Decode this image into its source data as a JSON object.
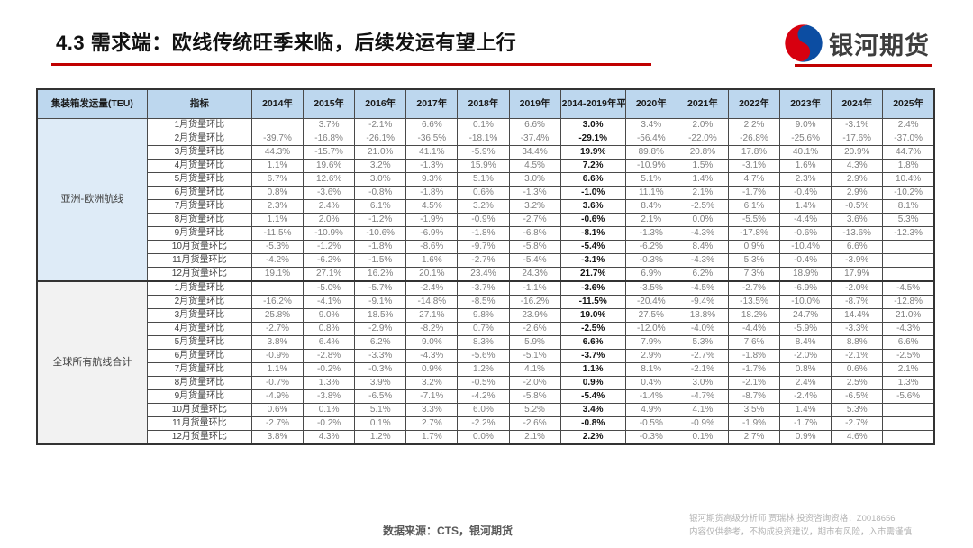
{
  "slide": {
    "title": "4.3 需求端：欧线传统旺季来临，后续发运有望上行",
    "logo_text": "银河期货"
  },
  "colors": {
    "accent_red": "#C00000",
    "table_header_bg": "#BDD7EE",
    "section1_tint": "#DEEBF7",
    "section2_tint": "#EFEFEF",
    "logo_blue": "#0C4DA2",
    "logo_red": "#D7000F"
  },
  "table": {
    "col_headers": [
      "集装箱发运量(TEU)",
      "指标",
      "2014年",
      "2015年",
      "2016年",
      "2017年",
      "2018年",
      "2019年",
      "2014-2019年平均",
      "2020年",
      "2021年",
      "2022年",
      "2023年",
      "2024年",
      "2025年"
    ],
    "sections": [
      {
        "group_label": "亚洲-欧洲航线",
        "rows": [
          {
            "label": "1月货量环比",
            "values": [
              "",
              "3.7%",
              "-2.1%",
              "6.6%",
              "0.1%",
              "6.6%",
              "3.0%",
              "3.4%",
              "2.0%",
              "2.2%",
              "9.0%",
              "-3.1%",
              "2.4%"
            ]
          },
          {
            "label": "2月货量环比",
            "values": [
              "-39.7%",
              "-16.8%",
              "-26.1%",
              "-36.5%",
              "-18.1%",
              "-37.4%",
              "-29.1%",
              "-56.4%",
              "-22.0%",
              "-26.8%",
              "-25.6%",
              "-17.6%",
              "-37.0%"
            ]
          },
          {
            "label": "3月货量环比",
            "values": [
              "44.3%",
              "-15.7%",
              "21.0%",
              "41.1%",
              "-5.9%",
              "34.4%",
              "19.9%",
              "89.8%",
              "20.8%",
              "17.8%",
              "40.1%",
              "20.9%",
              "44.7%"
            ]
          },
          {
            "label": "4月货量环比",
            "values": [
              "1.1%",
              "19.6%",
              "3.2%",
              "-1.3%",
              "15.9%",
              "4.5%",
              "7.2%",
              "-10.9%",
              "1.5%",
              "-3.1%",
              "1.6%",
              "4.3%",
              "1.8%"
            ]
          },
          {
            "label": "5月货量环比",
            "values": [
              "6.7%",
              "12.6%",
              "3.0%",
              "9.3%",
              "5.1%",
              "3.0%",
              "6.6%",
              "5.1%",
              "1.4%",
              "4.7%",
              "2.3%",
              "2.9%",
              "10.4%"
            ]
          },
          {
            "label": "6月货量环比",
            "values": [
              "0.8%",
              "-3.6%",
              "-0.8%",
              "-1.8%",
              "0.6%",
              "-1.3%",
              "-1.0%",
              "11.1%",
              "2.1%",
              "-1.7%",
              "-0.4%",
              "2.9%",
              "-10.2%"
            ]
          },
          {
            "label": "7月货量环比",
            "values": [
              "2.3%",
              "2.4%",
              "6.1%",
              "4.5%",
              "3.2%",
              "3.2%",
              "3.6%",
              "8.4%",
              "-2.5%",
              "6.1%",
              "1.4%",
              "-0.5%",
              "8.1%"
            ]
          },
          {
            "label": "8月货量环比",
            "values": [
              "1.1%",
              "2.0%",
              "-1.2%",
              "-1.9%",
              "-0.9%",
              "-2.7%",
              "-0.6%",
              "2.1%",
              "0.0%",
              "-5.5%",
              "-4.4%",
              "3.6%",
              "5.3%"
            ]
          },
          {
            "label": "9月货量环比",
            "values": [
              "-11.5%",
              "-10.9%",
              "-10.6%",
              "-6.9%",
              "-1.8%",
              "-6.8%",
              "-8.1%",
              "-1.3%",
              "-4.3%",
              "-17.8%",
              "-0.6%",
              "-13.6%",
              "-12.3%"
            ]
          },
          {
            "label": "10月货量环比",
            "values": [
              "-5.3%",
              "-1.2%",
              "-1.8%",
              "-8.6%",
              "-9.7%",
              "-5.8%",
              "-5.4%",
              "-6.2%",
              "8.4%",
              "0.9%",
              "-10.4%",
              "6.6%",
              ""
            ]
          },
          {
            "label": "11月货量环比",
            "values": [
              "-4.2%",
              "-6.2%",
              "-1.5%",
              "1.6%",
              "-2.7%",
              "-5.4%",
              "-3.1%",
              "-0.3%",
              "-4.3%",
              "5.3%",
              "-0.4%",
              "-3.9%",
              ""
            ]
          },
          {
            "label": "12月货量环比",
            "values": [
              "19.1%",
              "27.1%",
              "16.2%",
              "20.1%",
              "23.4%",
              "24.3%",
              "21.7%",
              "6.9%",
              "6.2%",
              "7.3%",
              "18.9%",
              "17.9%",
              ""
            ]
          }
        ]
      },
      {
        "group_label": "全球所有航线合计",
        "rows": [
          {
            "label": "1月货量环比",
            "values": [
              "",
              "-5.0%",
              "-5.7%",
              "-2.4%",
              "-3.7%",
              "-1.1%",
              "-3.6%",
              "-3.5%",
              "-4.5%",
              "-2.7%",
              "-6.9%",
              "-2.0%",
              "-4.5%"
            ]
          },
          {
            "label": "2月货量环比",
            "values": [
              "-16.2%",
              "-4.1%",
              "-9.1%",
              "-14.8%",
              "-8.5%",
              "-16.2%",
              "-11.5%",
              "-20.4%",
              "-9.4%",
              "-13.5%",
              "-10.0%",
              "-8.7%",
              "-12.8%"
            ]
          },
          {
            "label": "3月货量环比",
            "values": [
              "25.8%",
              "9.0%",
              "18.5%",
              "27.1%",
              "9.8%",
              "23.9%",
              "19.0%",
              "27.5%",
              "18.8%",
              "18.2%",
              "24.7%",
              "14.4%",
              "21.0%"
            ]
          },
          {
            "label": "4月货量环比",
            "values": [
              "-2.7%",
              "0.8%",
              "-2.9%",
              "-8.2%",
              "0.7%",
              "-2.6%",
              "-2.5%",
              "-12.0%",
              "-4.0%",
              "-4.4%",
              "-5.9%",
              "-3.3%",
              "-4.3%"
            ]
          },
          {
            "label": "5月货量环比",
            "values": [
              "3.8%",
              "6.4%",
              "6.2%",
              "9.0%",
              "8.3%",
              "5.9%",
              "6.6%",
              "7.9%",
              "5.3%",
              "7.6%",
              "8.4%",
              "8.8%",
              "6.6%"
            ]
          },
          {
            "label": "6月货量环比",
            "values": [
              "-0.9%",
              "-2.8%",
              "-3.3%",
              "-4.3%",
              "-5.6%",
              "-5.1%",
              "-3.7%",
              "2.9%",
              "-2.7%",
              "-1.8%",
              "-2.0%",
              "-2.1%",
              "-2.5%"
            ]
          },
          {
            "label": "7月货量环比",
            "values": [
              "1.1%",
              "-0.2%",
              "-0.3%",
              "0.9%",
              "1.2%",
              "4.1%",
              "1.1%",
              "8.1%",
              "-2.1%",
              "-1.7%",
              "0.8%",
              "0.6%",
              "2.1%"
            ]
          },
          {
            "label": "8月货量环比",
            "values": [
              "-0.7%",
              "1.3%",
              "3.9%",
              "3.2%",
              "-0.5%",
              "-2.0%",
              "0.9%",
              "0.4%",
              "3.0%",
              "-2.1%",
              "2.4%",
              "2.5%",
              "1.3%"
            ]
          },
          {
            "label": "9月货量环比",
            "values": [
              "-4.9%",
              "-3.8%",
              "-6.5%",
              "-7.1%",
              "-4.2%",
              "-5.8%",
              "-5.4%",
              "-1.4%",
              "-4.7%",
              "-8.7%",
              "-2.4%",
              "-6.5%",
              "-5.6%"
            ]
          },
          {
            "label": "10月货量环比",
            "values": [
              "0.6%",
              "0.1%",
              "5.1%",
              "3.3%",
              "6.0%",
              "5.2%",
              "3.4%",
              "4.9%",
              "4.1%",
              "3.5%",
              "1.4%",
              "5.3%",
              ""
            ]
          },
          {
            "label": "11月货量环比",
            "values": [
              "-2.7%",
              "-0.2%",
              "0.1%",
              "2.7%",
              "-2.2%",
              "-2.6%",
              "-0.8%",
              "-0.5%",
              "-0.9%",
              "-1.9%",
              "-1.7%",
              "-2.7%",
              ""
            ]
          },
          {
            "label": "12月货量环比",
            "values": [
              "3.8%",
              "4.3%",
              "1.2%",
              "1.7%",
              "0.0%",
              "2.1%",
              "2.2%",
              "-0.3%",
              "0.1%",
              "2.7%",
              "0.9%",
              "4.6%",
              ""
            ]
          }
        ]
      }
    ]
  },
  "footer": {
    "source": "数据来源：CTS，银河期货",
    "analyst_line": "银河期货高级分析师 贾瑞林 投资咨询资格：Z0018656",
    "disclaimer_line": "内容仅供参考，不构成投资建议，期市有风险，入市需谨慎"
  }
}
